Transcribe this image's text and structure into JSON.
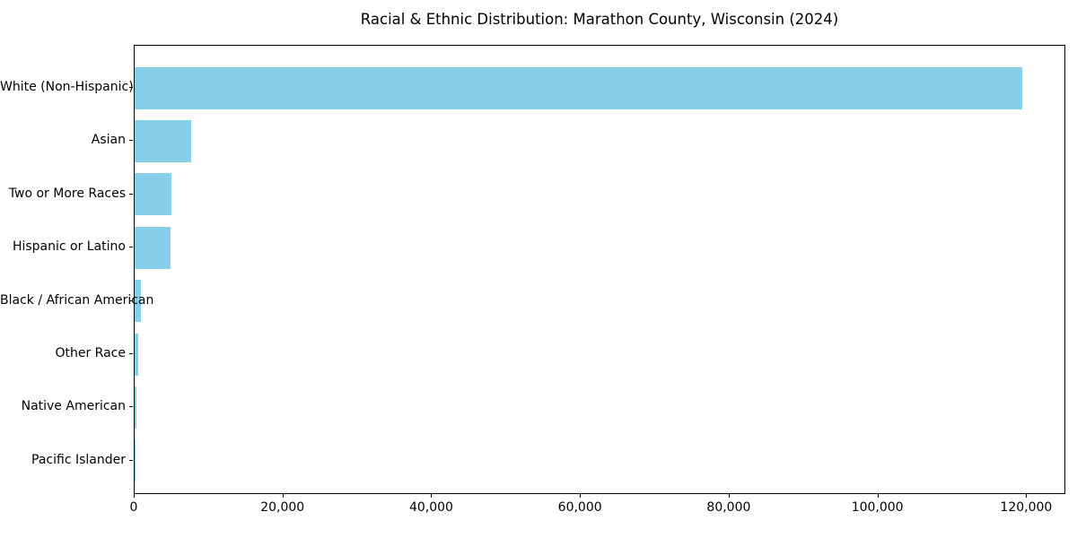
{
  "chart_data": {
    "type": "bar",
    "orientation": "horizontal",
    "title": "Racial & Ethnic Distribution: Marathon County, Wisconsin (2024)",
    "categories": [
      "White (Non-Hispanic)",
      "Asian",
      "Two or More Races",
      "Hispanic or Latino",
      "Black / African American",
      "Other Race",
      "Native American",
      "Pacific Islander"
    ],
    "values": [
      119300,
      7650,
      4900,
      4850,
      850,
      520,
      250,
      50
    ],
    "bar_color": "#87CEEB",
    "xlabel": "",
    "ylabel": "",
    "xlim": [
      0,
      125265
    ],
    "x_ticks": [
      0,
      20000,
      40000,
      60000,
      80000,
      100000,
      120000
    ],
    "x_tick_labels": [
      "0",
      "20,000",
      "40,000",
      "60,000",
      "80,000",
      "100,000",
      "120,000"
    ],
    "grid": false,
    "legend": null,
    "sort_order": "descending"
  }
}
